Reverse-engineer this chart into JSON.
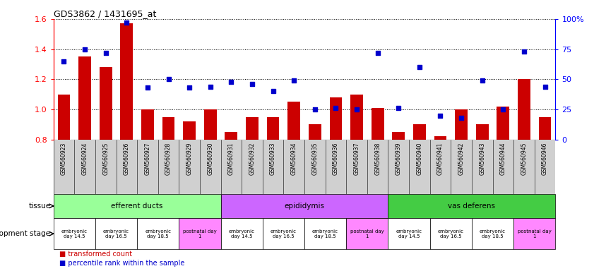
{
  "title": "GDS3862 / 1431695_at",
  "samples": [
    "GSM560923",
    "GSM560924",
    "GSM560925",
    "GSM560926",
    "GSM560927",
    "GSM560928",
    "GSM560929",
    "GSM560930",
    "GSM560931",
    "GSM560932",
    "GSM560933",
    "GSM560934",
    "GSM560935",
    "GSM560936",
    "GSM560937",
    "GSM560938",
    "GSM560939",
    "GSM560940",
    "GSM560941",
    "GSM560942",
    "GSM560943",
    "GSM560944",
    "GSM560945",
    "GSM560946"
  ],
  "bar_values": [
    1.1,
    1.35,
    1.28,
    1.57,
    1.0,
    0.95,
    0.92,
    1.0,
    0.85,
    0.95,
    0.95,
    1.05,
    0.9,
    1.08,
    1.1,
    1.01,
    0.85,
    0.9,
    0.82,
    1.0,
    0.9,
    1.02,
    1.2,
    0.95
  ],
  "scatter_values": [
    65,
    75,
    72,
    97,
    43,
    50,
    43,
    44,
    48,
    46,
    40,
    49,
    25,
    26,
    25,
    72,
    26,
    60,
    20,
    18,
    49,
    25,
    73,
    44
  ],
  "ylim_left": [
    0.8,
    1.6
  ],
  "ylim_right": [
    0,
    100
  ],
  "yticks_left": [
    0.8,
    1.0,
    1.2,
    1.4,
    1.6
  ],
  "yticks_right": [
    0,
    25,
    50,
    75,
    100
  ],
  "bar_color": "#cc0000",
  "scatter_color": "#0000cc",
  "tissue_groups": [
    {
      "label": "efferent ducts",
      "start": 0,
      "end": 7,
      "color": "#99ff99"
    },
    {
      "label": "epididymis",
      "start": 8,
      "end": 15,
      "color": "#cc66ff"
    },
    {
      "label": "vas deferens",
      "start": 16,
      "end": 23,
      "color": "#44cc44"
    }
  ],
  "dev_stage_groups": [
    {
      "label": "embryonic\nday 14.5",
      "start": 0,
      "end": 1,
      "color": "#ffffff"
    },
    {
      "label": "embryonic\nday 16.5",
      "start": 2,
      "end": 3,
      "color": "#ffffff"
    },
    {
      "label": "embryonic\nday 18.5",
      "start": 4,
      "end": 5,
      "color": "#ffffff"
    },
    {
      "label": "postnatal day\n1",
      "start": 6,
      "end": 7,
      "color": "#ff88ff"
    },
    {
      "label": "embryonic\nday 14.5",
      "start": 8,
      "end": 9,
      "color": "#ffffff"
    },
    {
      "label": "embryonic\nday 16.5",
      "start": 10,
      "end": 11,
      "color": "#ffffff"
    },
    {
      "label": "embryonic\nday 18.5",
      "start": 12,
      "end": 13,
      "color": "#ffffff"
    },
    {
      "label": "postnatal day\n1",
      "start": 14,
      "end": 15,
      "color": "#ff88ff"
    },
    {
      "label": "embryonic\nday 14.5",
      "start": 16,
      "end": 17,
      "color": "#ffffff"
    },
    {
      "label": "embryonic\nday 16.5",
      "start": 18,
      "end": 19,
      "color": "#ffffff"
    },
    {
      "label": "embryonic\nday 18.5",
      "start": 20,
      "end": 21,
      "color": "#ffffff"
    },
    {
      "label": "postnatal day\n1",
      "start": 22,
      "end": 23,
      "color": "#ff88ff"
    }
  ],
  "legend_bar_label": "transformed count",
  "legend_scatter_label": "percentile rank within the sample",
  "tissue_label": "tissue",
  "dev_stage_label": "development stage",
  "gsm_label_fontsize": 5.5,
  "right_ytick_labels": [
    "0",
    "25",
    "50",
    "75",
    "100%"
  ]
}
